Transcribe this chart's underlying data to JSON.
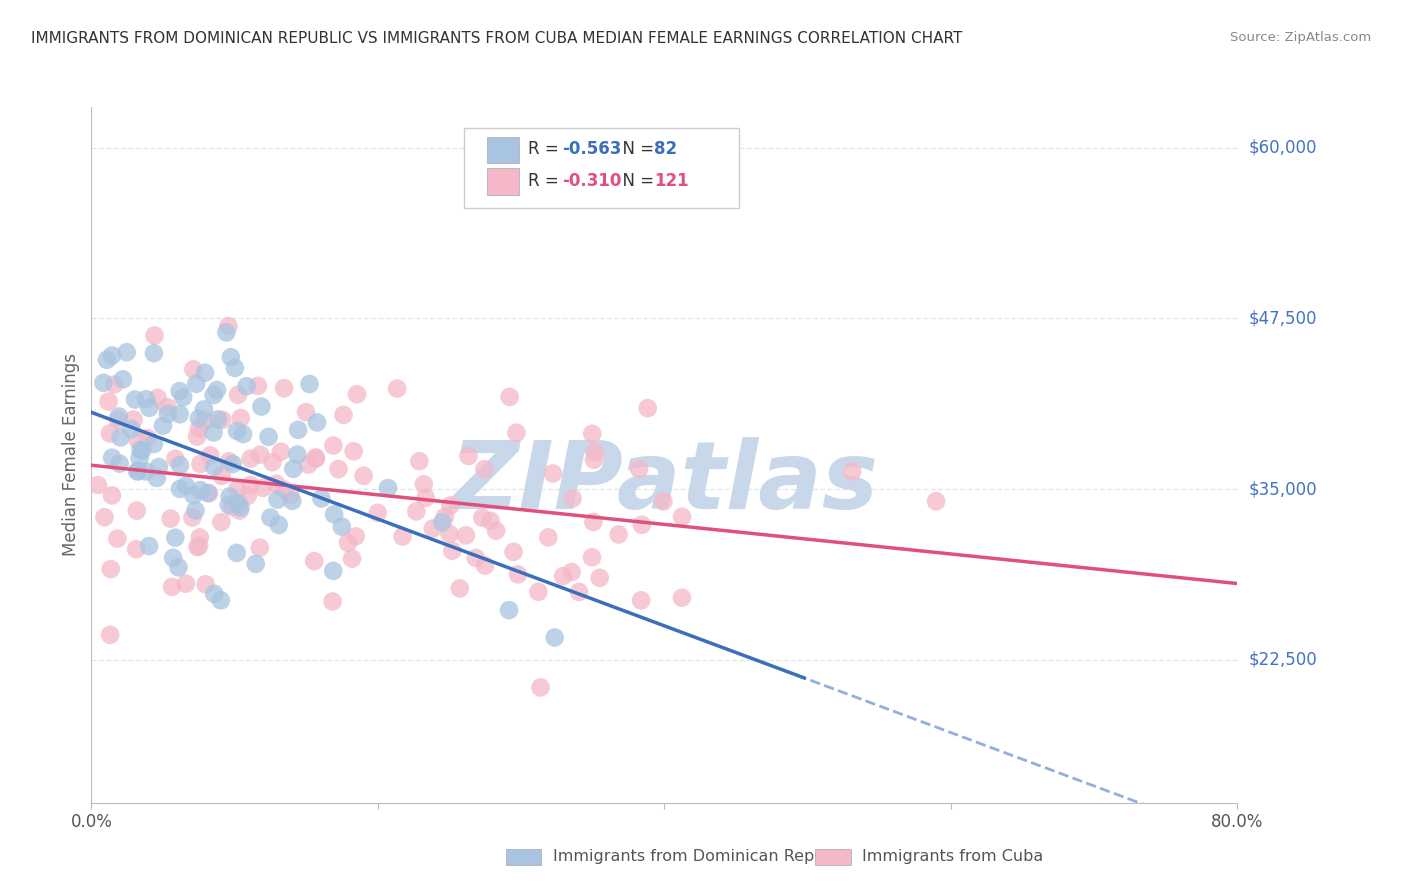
{
  "title": "IMMIGRANTS FROM DOMINICAN REPUBLIC VS IMMIGRANTS FROM CUBA MEDIAN FEMALE EARNINGS CORRELATION CHART",
  "source": "Source: ZipAtlas.com",
  "ylabel": "Median Female Earnings",
  "ytick_labels": [
    "$60,000",
    "$47,500",
    "$35,000",
    "$22,500"
  ],
  "ytick_values": [
    60000,
    47500,
    35000,
    22500
  ],
  "ymin": 12000,
  "ymax": 63000,
  "xmin": 0.0,
  "xmax": 0.8,
  "series": [
    {
      "name": "Immigrants from Dominican Republic",
      "color": "#a8c4e0",
      "R": -0.563,
      "N": 82,
      "line_color": "#3b6fbc",
      "R_label": "-0.563",
      "N_label": "82"
    },
    {
      "name": "Immigrants from Cuba",
      "color": "#f4b8c8",
      "R": -0.31,
      "N": 121,
      "line_color": "#e0507a",
      "R_label": "-0.310",
      "N_label": "121"
    }
  ],
  "watermark": "ZIPatlas",
  "watermark_color": "#c8d8ea",
  "background_color": "#ffffff",
  "grid_color": "#dde8f0",
  "title_color": "#333333",
  "right_label_color": "#4472c4",
  "legend_R_color": "#e05070",
  "seed_dr": 42,
  "seed_cuba": 7
}
